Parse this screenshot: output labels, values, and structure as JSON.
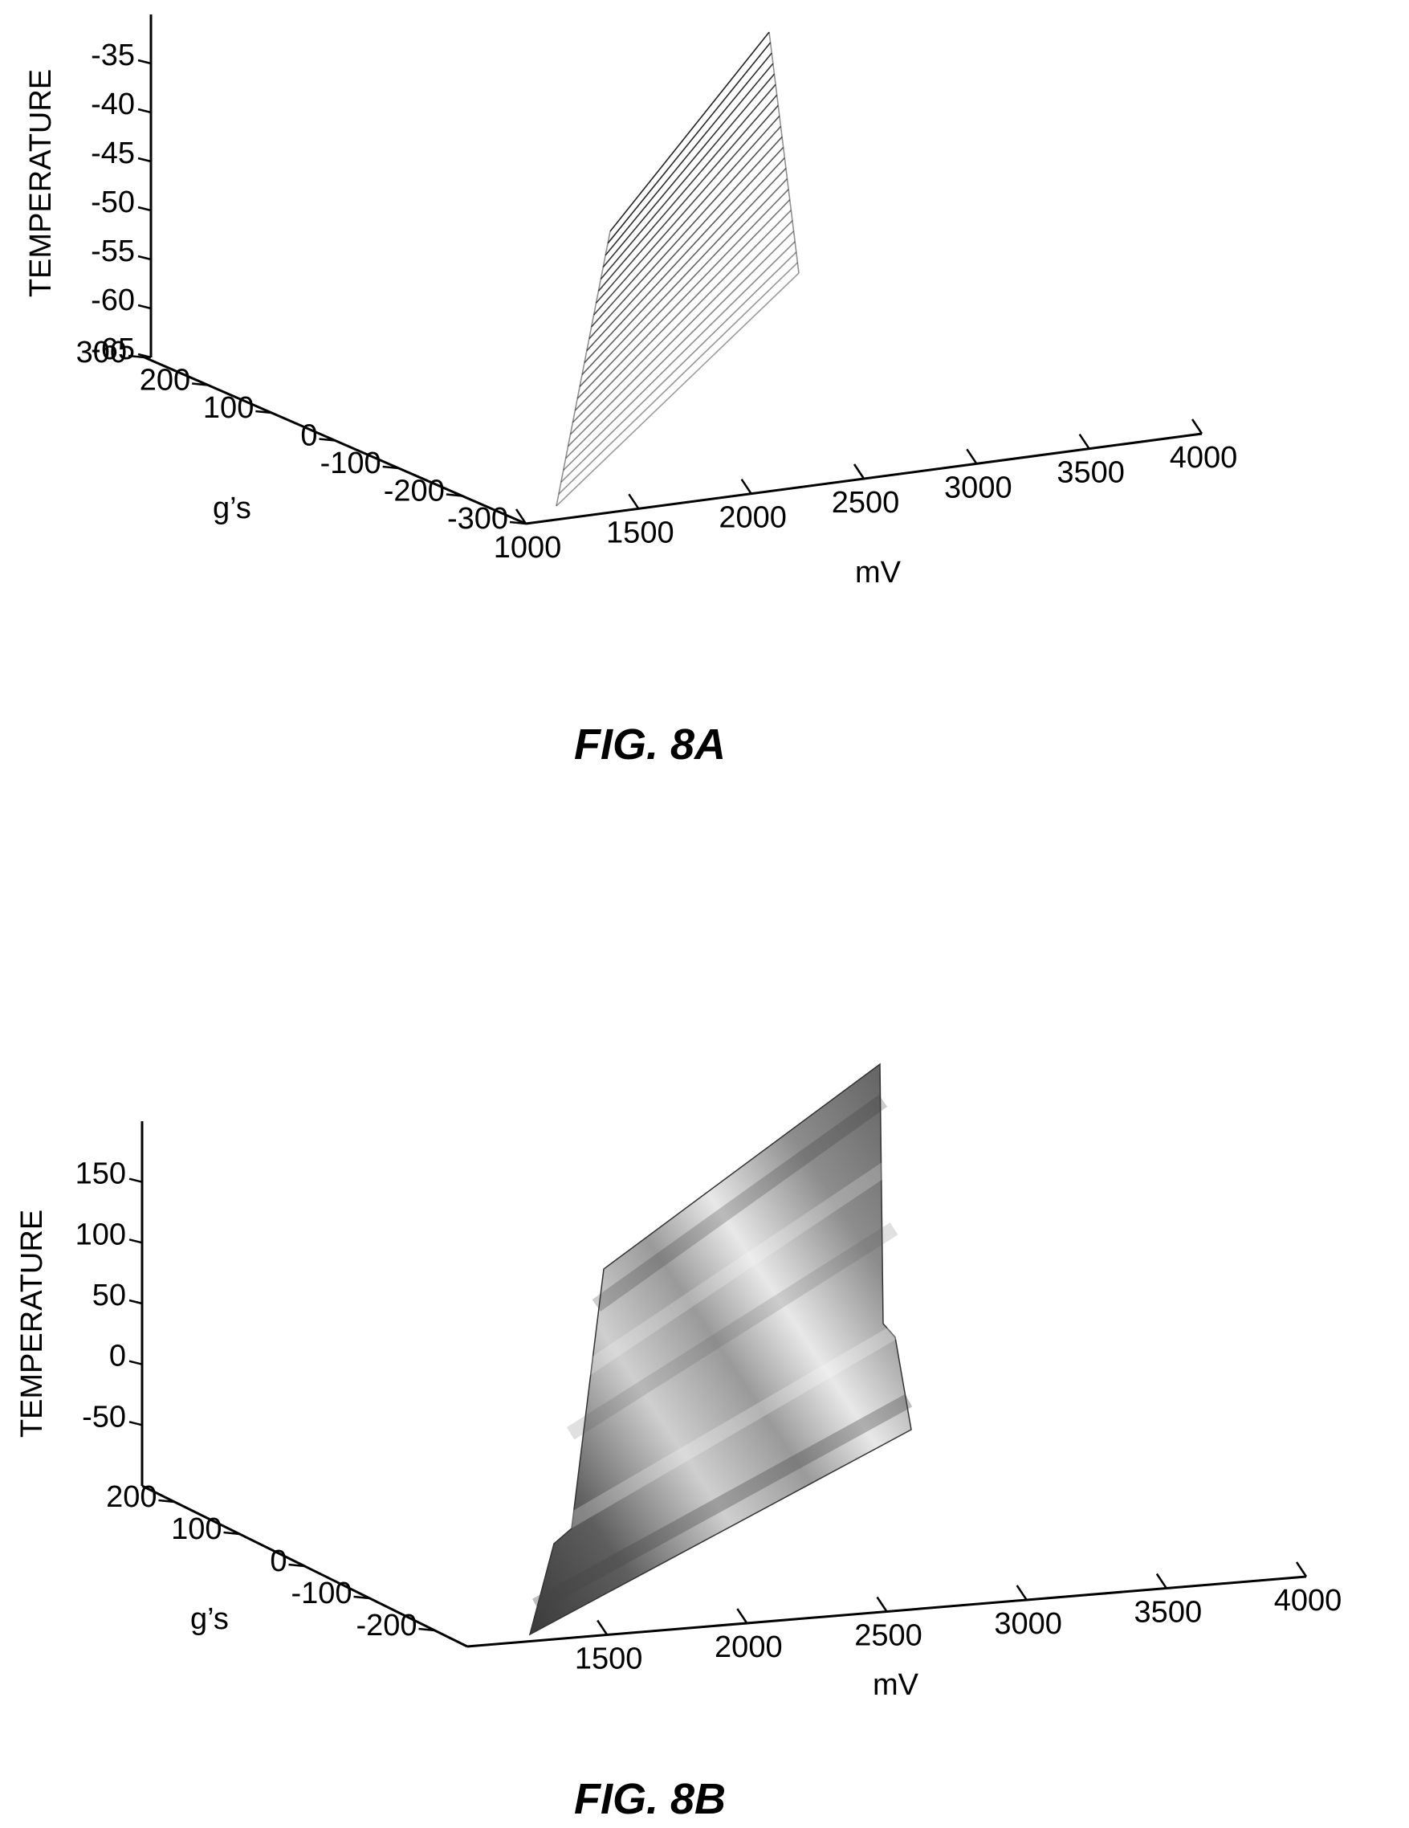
{
  "chart_data": [
    {
      "type": "surface",
      "caption": "FIG. 8A",
      "render": "mesh",
      "axes": {
        "x": {
          "label": "mV",
          "ticks": [
            "1000",
            "1500",
            "2000",
            "2500",
            "3000",
            "3500",
            "4000"
          ],
          "range": [
            1000,
            4000
          ]
        },
        "y": {
          "label": "g’s",
          "ticks": [
            "300",
            "200",
            "100",
            "0",
            "-100",
            "-200",
            "-300"
          ],
          "range": [
            -300,
            300
          ]
        },
        "z": {
          "label": "TEMPERATURE",
          "ticks": [
            "-35",
            "-40",
            "-45",
            "-50",
            "-55",
            "-60",
            "-65"
          ],
          "range": [
            -65,
            -30
          ]
        }
      },
      "surface": {
        "mv_at_g_minus300": [
          1200,
          2400
        ],
        "mv_at_g_plus300": [
          1900,
          3000
        ],
        "temperature_range": [
          -65,
          -30
        ],
        "mesh_lines": 24
      }
    },
    {
      "type": "surface",
      "caption": "FIG. 8B",
      "render": "shaded",
      "axes": {
        "x": {
          "label": "mV",
          "ticks": [
            "1500",
            "2000",
            "2500",
            "3000",
            "3500",
            "4000"
          ],
          "range": [
            1000,
            4000
          ]
        },
        "y": {
          "label": "g’s",
          "ticks": [
            "200",
            "100",
            "0",
            "-100",
            "-200"
          ],
          "range": [
            -250,
            250
          ]
        },
        "z": {
          "label": "TEMPERATURE",
          "ticks": [
            "150",
            "100",
            "50",
            "0",
            "-50"
          ],
          "range": [
            -100,
            200
          ]
        }
      },
      "surface": {
        "temperature_range": [
          -50,
          175
        ]
      }
    }
  ]
}
